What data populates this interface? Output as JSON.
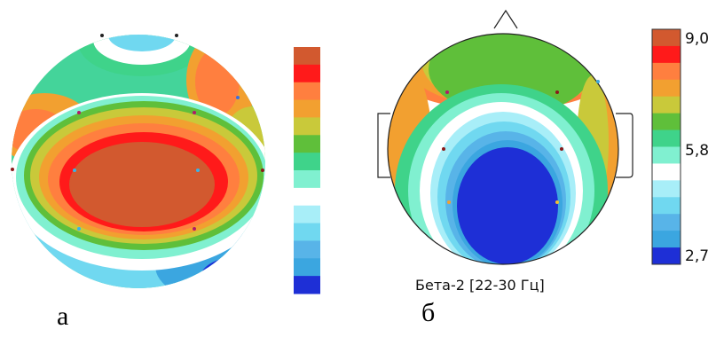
{
  "panels": [
    {
      "label": "а"
    },
    {
      "label": "б",
      "caption": "Бета-2  [22-30 Гц]"
    }
  ],
  "color_scale": {
    "max": "9,0",
    "mid": "5,8",
    "min": "2,7",
    "colors": [
      "#d2592f",
      "#ff1a1a",
      "#ff7f3f",
      "#f2a030",
      "#c9c93a",
      "#5fbf3a",
      "#3fd38a",
      "#80f0d0",
      "#ffffff",
      "#a8eef8",
      "#70d8f0",
      "#58b4e8",
      "#3ba6e0",
      "#1e2fd6"
    ]
  }
}
